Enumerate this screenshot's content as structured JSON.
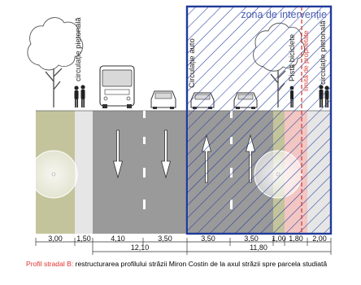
{
  "labels": {
    "zone": "zona de intervenție",
    "circ_ped_left": "circulație pietonală",
    "circ_auto": "Circulație auto",
    "pista_biciclete": "Pistă biciclete",
    "circ_ped_right": "circulație pietonală",
    "limita": "limită de proprietate"
  },
  "dimensions": {
    "segments": [
      "3,00",
      "1,50",
      "4,10",
      "3,50",
      "3,50",
      "3,50",
      "1,00",
      "1,80",
      "2,00"
    ],
    "totals": [
      "12,10",
      "11,80"
    ]
  },
  "caption": {
    "lead": "Profil stradal B:",
    "text": " restructurarea profilului străzii Miron Costin de la axul străzii spre parcela studiată"
  },
  "colors": {
    "zone_border": "#1f3a9a",
    "hatch": "#1f3a9a",
    "grass": "#c3c49b",
    "sidewalk": "#e6e6e6",
    "road": "#9a9a9a",
    "bike_lane": "#f2c6c3",
    "limit_line": "#d8403a"
  }
}
